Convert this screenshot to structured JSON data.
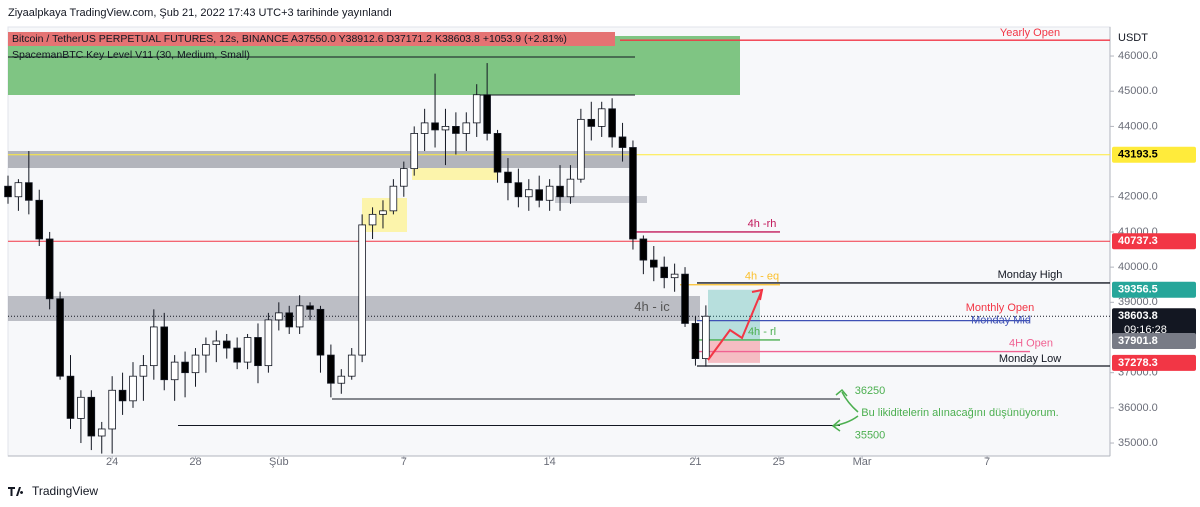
{
  "header": {
    "publisher": "Ziyaalpkaya TradingView.com, Şub 21, 2022 17:43 UTC+3 tarihinde yayınlandı"
  },
  "chart_data": {
    "type": "candlestick",
    "symbol_info": "Bitcoin / TetherUS PERPETUAL FUTURES, 12s, BINANCE  A37550.0  Y38912.6  D37171.2  K38603.8  +1053.9 (+2.81%)",
    "indicator": "SpacemanBTC Key Level V11 (30, Medium, Small)",
    "currency": "USDT",
    "up_color": "#ffffff",
    "down_color": "#000000",
    "x": [
      19,
      19.5,
      20,
      20.5,
      21,
      21.5,
      22,
      22.5,
      23,
      23.5,
      24,
      24.5,
      25,
      25.5,
      26,
      26.5,
      27,
      27.5,
      28,
      28.5,
      29,
      29.5,
      30,
      30.5,
      31,
      31.5,
      32,
      32.5,
      33,
      33.5,
      34,
      34.5,
      35,
      35.5,
      36,
      36.5,
      37,
      37.5,
      38,
      38.5,
      39,
      39.5,
      40,
      40.5,
      41,
      41.5,
      42,
      42.5,
      43,
      43.5,
      44,
      44.5,
      45,
      45.5,
      46,
      46.5,
      47,
      47.5,
      48,
      48.5,
      49,
      49.5,
      50,
      50.5,
      51,
      51.5,
      52,
      52.5
    ],
    "open": [
      42300,
      42000,
      42400,
      41900,
      40800,
      39100,
      36900,
      35700,
      36300,
      35200,
      35400,
      36500,
      36200,
      36900,
      37200,
      38300,
      36800,
      37300,
      37000,
      37500,
      37800,
      37900,
      37700,
      37300,
      38000,
      37200,
      38500,
      38700,
      38300,
      38900,
      38800,
      37500,
      36700,
      36900,
      37500,
      41200,
      41500,
      41600,
      42300,
      42800,
      43800,
      44100,
      43900,
      44000,
      43800,
      44100,
      44900,
      43800,
      42700,
      42400,
      42000,
      42200,
      41900,
      42300,
      42000,
      42500,
      44200,
      44000,
      44500,
      43700,
      43400,
      40800,
      40200,
      40000,
      39700,
      39800,
      38400,
      37400
    ],
    "high": [
      42600,
      42500,
      43300,
      42200,
      41000,
      39300,
      37500,
      36500,
      36500,
      35600,
      36900,
      37000,
      37300,
      37500,
      38800,
      38700,
      37500,
      37600,
      37700,
      38000,
      38200,
      38100,
      38000,
      38100,
      38400,
      38700,
      39000,
      38900,
      39200,
      39000,
      38900,
      37800,
      37100,
      37700,
      41500,
      41700,
      41900,
      42500,
      43000,
      44000,
      44500,
      45500,
      44500,
      44400,
      44400,
      45200,
      45800,
      43900,
      43100,
      42800,
      42500,
      42600,
      42500,
      42900,
      42900,
      44500,
      44700,
      44700,
      44800,
      44100,
      43600,
      40900,
      40600,
      40300,
      40100,
      40000,
      38600,
      38913
    ],
    "low": [
      41800,
      41600,
      41500,
      40600,
      38800,
      36800,
      35400,
      35000,
      34800,
      34700,
      34700,
      35800,
      36000,
      36200,
      36800,
      36500,
      36200,
      36300,
      36600,
      37000,
      37300,
      37400,
      37100,
      37100,
      36700,
      37000,
      38200,
      38100,
      38100,
      38500,
      37000,
      36300,
      36400,
      36800,
      37300,
      40800,
      41100,
      41500,
      42000,
      42600,
      43300,
      43400,
      42900,
      43200,
      43300,
      43700,
      43600,
      42400,
      41900,
      41700,
      41600,
      41700,
      41600,
      41600,
      41800,
      42400,
      43600,
      43700,
      43400,
      43000,
      40500,
      39800,
      39600,
      39400,
      39300,
      38300,
      37200,
      37171
    ],
    "close": [
      42000,
      42400,
      41900,
      40800,
      39100,
      36900,
      35700,
      36300,
      35200,
      35400,
      36500,
      36200,
      36900,
      37200,
      38300,
      36800,
      37300,
      37000,
      37500,
      37800,
      37900,
      37700,
      37300,
      38000,
      37200,
      38500,
      38700,
      38300,
      38900,
      38800,
      37500,
      36700,
      36900,
      37500,
      41200,
      41500,
      41600,
      42300,
      42800,
      43800,
      44100,
      43900,
      44000,
      43800,
      44100,
      44900,
      43800,
      42700,
      42400,
      42000,
      42200,
      41900,
      42300,
      42000,
      42500,
      44200,
      44000,
      44500,
      43700,
      43400,
      40800,
      40200,
      40000,
      39700,
      39800,
      38400,
      37400,
      38603.8
    ],
    "xlim": [
      19,
      71.9
    ],
    "xticks": [
      24,
      28,
      {
        "value": 32,
        "label": "Şub"
      },
      {
        "value": 38,
        "label": "7"
      },
      {
        "value": 45,
        "label": "14"
      },
      {
        "value": 52,
        "label": "21"
      },
      {
        "value": 56,
        "label": "25"
      },
      {
        "value": 60,
        "label": "Mar"
      },
      {
        "value": 66,
        "label": "7"
      }
    ],
    "ylim": [
      34660,
      46740
    ],
    "yticks": [
      {
        "value": 35000,
        "label": "35000.0"
      },
      {
        "value": 36000,
        "label": "36000.0"
      },
      {
        "value": 37000,
        "label": "37000.0"
      },
      {
        "value": 39000,
        "label": "39000.0"
      },
      {
        "value": 40000,
        "label": "40000.0"
      },
      {
        "value": 41000,
        "label": "41000.0"
      },
      {
        "value": 42000,
        "label": "42000.0"
      },
      {
        "value": 44000,
        "label": "44000.0"
      },
      {
        "value": 45000,
        "label": "45000.0"
      },
      {
        "value": 46000,
        "label": "46000.0"
      }
    ],
    "grid": false,
    "price_labels": [
      {
        "value": 43193.5,
        "label": "43193.5",
        "color": "#ffeb3b",
        "text_color": "#000000",
        "line": true
      },
      {
        "value": 40737.3,
        "label": "40737.3",
        "color": "#f23645",
        "text_color": "#ffffff",
        "line": true
      },
      {
        "value": 39356.5,
        "label": "39356.5",
        "color": "#26a69a",
        "text_color": "#ffffff",
        "line": false
      },
      {
        "value": 38603.8,
        "label": "38603.8",
        "color": "#131722",
        "text_color": "#ffffff",
        "line": false
      },
      {
        "value": 37901.8,
        "label": "37901.8",
        "color": "#787b86",
        "text_color": "#ffffff",
        "line": false
      },
      {
        "value": 37278.3,
        "label": "37278.3",
        "color": "#f23645",
        "text_color": "#ffffff",
        "line": false
      }
    ],
    "countdown": "09:16:28",
    "levels": [
      {
        "label": "Yearly Open",
        "value": 46450,
        "color": "#f23645"
      },
      {
        "label": "4h -rh",
        "value": 41000,
        "color": "#c2185b"
      },
      {
        "label": "4h - eq",
        "value": 39500,
        "color": "#fbc02d"
      },
      {
        "label": "Monday High",
        "value": 39550,
        "color": "#131722"
      },
      {
        "label": "4h - ic",
        "value": 38850,
        "color": "#555555"
      },
      {
        "label": "Monthly Open",
        "value": 38660,
        "color": "#f23645"
      },
      {
        "label": "Monday Mid",
        "value": 38480,
        "color": "#3f51b5"
      },
      {
        "label": "4h - rl",
        "value": 37930,
        "color": "#4caf50"
      },
      {
        "label": "4H Open",
        "value": 37600,
        "color": "#f06292"
      },
      {
        "label": "Monday Low",
        "value": 37190,
        "color": "#131722"
      }
    ],
    "liquidity_levels": [
      36250,
      35500
    ],
    "note": "Bu likiditelerin alınacağını düşünüyorum."
  },
  "footer": {
    "brand": "TradingView"
  }
}
